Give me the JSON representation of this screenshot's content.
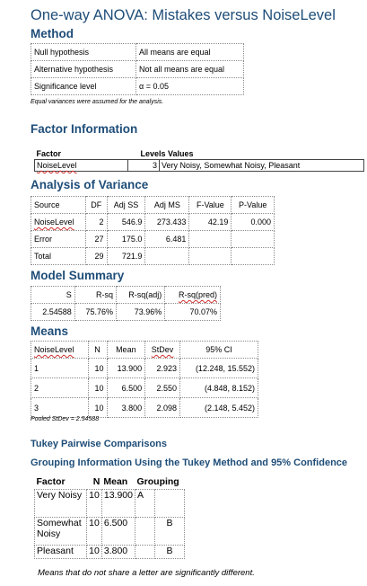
{
  "title": "One-way ANOVA: Mistakes versus NoiseLevel",
  "method": {
    "heading": "Method",
    "rows": [
      {
        "label": "Null hypothesis",
        "value": "All means are equal"
      },
      {
        "label": "Alternative hypothesis",
        "value": "Not all means are equal"
      },
      {
        "label": "Significance level",
        "value": "α = 0.05"
      }
    ],
    "note": "Equal variances were assumed for the analysis."
  },
  "factor_info": {
    "heading": "Factor Information",
    "headers": {
      "factor": "Factor",
      "levels_values": "Levels Values"
    },
    "row": {
      "factor": "NoiseLevel",
      "levels": "3",
      "values": "Very Noisy, Somewhat Noisy, Pleasant"
    }
  },
  "anova": {
    "heading": "Analysis of Variance",
    "headers": [
      "Source",
      "DF",
      "Adj SS",
      "Adj MS",
      "F-Value",
      "P-Value"
    ],
    "rows": [
      [
        "NoiseLevel",
        "2",
        "546.9",
        "273.433",
        "42.19",
        "0.000"
      ],
      [
        "Error",
        "27",
        "175.0",
        "6.481",
        "",
        ""
      ],
      [
        "Total",
        "29",
        "721.9",
        "",
        "",
        ""
      ]
    ]
  },
  "model_summary": {
    "heading": "Model Summary",
    "headers": [
      "S",
      "R-sq",
      "R-sq(adj)",
      "R-sq(pred)"
    ],
    "row": [
      "2.54588",
      "75.76%",
      "73.96%",
      "70.07%"
    ]
  },
  "means": {
    "heading": "Means",
    "headers": [
      "NoiseLevel",
      "N",
      "Mean",
      "StDev",
      "95% CI"
    ],
    "rows": [
      [
        "1",
        "10",
        "13.900",
        "2.923",
        "(12.248, 15.552)"
      ],
      [
        "2",
        "10",
        "6.500",
        "2.550",
        "(4.848, 8.152)"
      ],
      [
        "3",
        "10",
        "3.800",
        "2.098",
        "(2.148, 5.452)"
      ]
    ],
    "note": "Pooled StDev = 2.54588"
  },
  "tukey": {
    "heading": "Tukey Pairwise Comparisons",
    "subheading": "Grouping Information Using the Tukey Method and 95% Confidence",
    "headers": [
      "Factor",
      "N",
      "Mean",
      "Grouping"
    ],
    "rows": [
      {
        "factor": "Very Noisy",
        "n": "10",
        "mean": "13.900",
        "g1": "A",
        "g2": ""
      },
      {
        "factor": "Somewhat Noisy",
        "n": "10",
        "mean": "6.500",
        "g1": "",
        "g2": "B"
      },
      {
        "factor": "Pleasant",
        "n": "10",
        "mean": "3.800",
        "g1": "",
        "g2": "B"
      }
    ],
    "footnote": "Means that do not share a letter are significantly different."
  }
}
